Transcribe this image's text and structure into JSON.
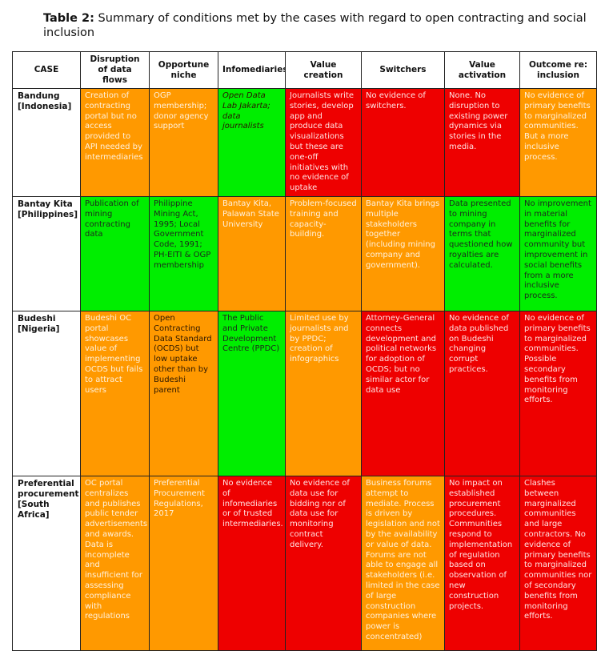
{
  "caption": {
    "label": "Table 2:",
    "text": " Summary of conditions met by the cases with regard to open contracting and social inclusion"
  },
  "table": {
    "headers": [
      "CASE",
      "Disruption of data flows",
      "Opportune niche",
      "Infomediaries",
      "Value creation",
      "Switchers",
      "Value activation",
      "Outcome re: inclusion"
    ],
    "rows": [
      {
        "case": "Bandung [Indonesia]",
        "cells": [
          "Creation of contracting portal but no access provided to API needed by intermediaries",
          "OGP membership; donor agency support",
          "Open Data Lab Jakarta; data journalists",
          "Journalists write stories, develop app and produce data visualizations but these are one-off initiatives with no evidence of uptake",
          "No evidence of switchers.",
          "None. No disruption to existing power dynamics via stories in the media.",
          "No evidence of primary benefits to marginalized communities. But a more inclusive process."
        ]
      },
      {
        "case": "Bantay Kita [Philippines]",
        "cells": [
          "Publication of mining contracting data",
          "Philippine Mining Act, 1995; Local Government Code, 1991; PH-EITI & OGP membership",
          "Bantay Kita, Palawan State University",
          "Problem-focused training and capacity-building.",
          "Bantay Kita brings multiple stakeholders together (including mining company and government).",
          "Data presented to mining company in terms that questioned how royalties are calculated.",
          "No improvement in material benefits for marginalized community but improvement in social benefits from a more inclusive process."
        ]
      },
      {
        "case": "Budeshi [Nigeria]",
        "cells": [
          "Budeshi OC portal showcases value of implementing OCDS but fails to attract users",
          "Open Contracting Data Standard (OCDS) but low uptake other than by Budeshi parent",
          "The Public and Private Development Centre (PPDC)",
          "Limited use by journalists and by PPDC; creation of infographics",
          "Attorney-General connects development and political networks for adoption of OCDS; but no similar actor for data use",
          "No evidence of data published on Budeshi changing corrupt practices.",
          "No evidence of primary benefits to marginalized communities. Possible secondary benefits from monitoring efforts."
        ]
      },
      {
        "case": "Preferential procurement [South Africa]",
        "cells": [
          "OC portal centralizes and publishes public tender advertisements and awards. Data is incomplete and insufficient for assessing compliance with regulations",
          "Preferential Procurement Regulations, 2017",
          "No evidence of infomediaries or of trusted intermediaries.",
          "No evidence of data use for bidding nor of data use for monitoring contract delivery.",
          "Business forums attempt to mediate. Process is driven by legislation and not by the availability or value of data. Forums are not able to engage all stakeholders (i.e. limited in the case of large construction companies where power is concentrated)",
          "No impact on established procurement procedures. Communities respond to implementation of regulation based on observation of new construction projects.",
          "Clashes between marginalized communities and large contractors. No evidence of primary benefits to marginalized communities nor of secondary benefits from monitoring efforts."
        ]
      }
    ]
  },
  "colors": {
    "orange": "#ff9900",
    "green": "#00ee00",
    "red": "#ee0000"
  }
}
